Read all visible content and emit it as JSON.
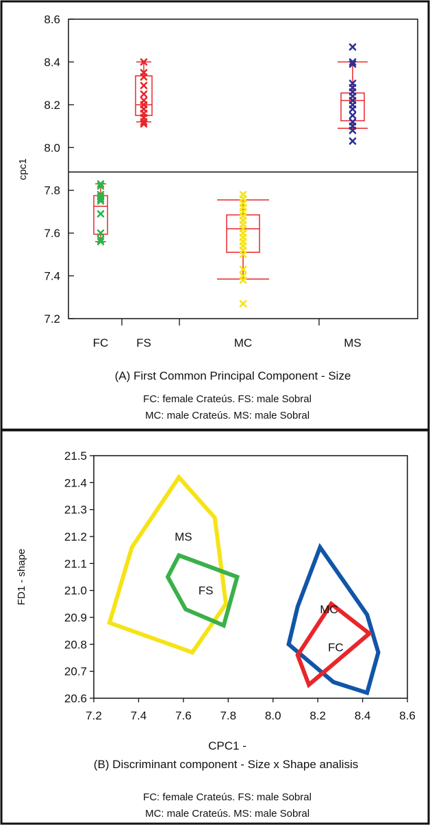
{
  "chart_data": [
    {
      "type": "box",
      "panel": "A",
      "ylabel": "cpc1",
      "ylim": [
        7.2,
        8.6
      ],
      "y_ticks": [
        "7.2",
        "7.4",
        "7.6",
        "7.8",
        "8.0",
        "8.2",
        "8.4",
        "8.6"
      ],
      "categories": [
        "FC",
        "FS",
        "MC",
        "MS"
      ],
      "grid": false,
      "series": [
        {
          "category": "FC",
          "color": "#2db34a",
          "box": {
            "q1": 7.595,
            "median": 7.725,
            "q3": 7.775,
            "whisker_low": 7.56,
            "whisker_high": 7.83
          },
          "points": [
            7.56,
            7.57,
            7.6,
            7.69,
            7.75,
            7.76,
            7.77,
            7.78,
            7.82,
            7.83
          ]
        },
        {
          "category": "FS",
          "color": "#e8262b",
          "box": {
            "q1": 8.15,
            "median": 8.2,
            "q3": 8.335,
            "whisker_low": 8.12,
            "whisker_high": 8.4
          },
          "points": [
            8.11,
            8.12,
            8.14,
            8.16,
            8.18,
            8.2,
            8.22,
            8.25,
            8.29,
            8.33,
            8.35,
            8.4
          ]
        },
        {
          "category": "MC",
          "color": "#f6e317",
          "box": {
            "q1": 7.51,
            "median": 7.62,
            "q3": 7.685,
            "whisker_low": 7.385,
            "whisker_high": 7.755
          },
          "points": [
            7.27,
            7.38,
            7.4,
            7.43,
            7.5,
            7.52,
            7.54,
            7.56,
            7.58,
            7.6,
            7.62,
            7.64,
            7.66,
            7.68,
            7.7,
            7.72,
            7.74,
            7.76,
            7.78
          ]
        },
        {
          "category": "MS",
          "color": "#2e3192",
          "box": {
            "q1": 8.125,
            "median": 8.22,
            "q3": 8.255,
            "whisker_low": 8.09,
            "whisker_high": 8.4
          },
          "points": [
            8.03,
            8.08,
            8.1,
            8.12,
            8.15,
            8.18,
            8.2,
            8.22,
            8.24,
            8.26,
            8.28,
            8.3,
            8.39,
            8.4,
            8.47
          ]
        }
      ],
      "caption": "(A) First Common Principal Component - Size",
      "legend_lines": [
        "FC: female Crateús. FS: male Sobral",
        "MC: male Crateús. MS: male Sobral"
      ]
    },
    {
      "type": "polygon",
      "panel": "B",
      "xlabel": "CPC1 -",
      "ylabel": "FD1 - shape",
      "xlim": [
        7.2,
        8.6
      ],
      "ylim": [
        20.6,
        21.5
      ],
      "x_ticks": [
        "7.2",
        "7.4",
        "7.6",
        "7.8",
        "8.0",
        "8.2",
        "8.4",
        "8.6"
      ],
      "y_ticks": [
        "20.6",
        "20.7",
        "20.8",
        "20.9",
        "21.0",
        "21.1",
        "21.2",
        "21.3",
        "21.4",
        "21.5"
      ],
      "grid": false,
      "series": [
        {
          "name": "MS",
          "color": "#f6e317",
          "label_at": [
            7.6,
            21.2
          ],
          "points": [
            [
              7.58,
              21.42
            ],
            [
              7.74,
              21.27
            ],
            [
              7.79,
              20.95
            ],
            [
              7.64,
              20.77
            ],
            [
              7.27,
              20.88
            ],
            [
              7.37,
              21.16
            ]
          ]
        },
        {
          "name": "FS",
          "color": "#3bb04a",
          "label_at": [
            7.7,
            21.0
          ],
          "points": [
            [
              7.58,
              21.13
            ],
            [
              7.84,
              21.05
            ],
            [
              7.78,
              20.87
            ],
            [
              7.61,
              20.93
            ],
            [
              7.53,
              21.05
            ]
          ]
        },
        {
          "name": "MC",
          "color": "#1155a8",
          "label_at": [
            8.25,
            20.93
          ],
          "points": [
            [
              8.21,
              21.16
            ],
            [
              8.42,
              20.91
            ],
            [
              8.47,
              20.77
            ],
            [
              8.42,
              20.62
            ],
            [
              8.27,
              20.66
            ],
            [
              8.07,
              20.8
            ],
            [
              8.11,
              20.94
            ]
          ]
        },
        {
          "name": "FC",
          "color": "#e8262b",
          "label_at": [
            8.28,
            20.79
          ],
          "points": [
            [
              8.26,
              20.95
            ],
            [
              8.43,
              20.84
            ],
            [
              8.16,
              20.65
            ],
            [
              8.11,
              20.76
            ]
          ]
        }
      ],
      "caption": "(B) Discriminant component - Size x Shape analisis",
      "legend_lines": [
        "FC: female Crateús. FS: male Sobral",
        "MC: male Crateús. MS: male Sobral"
      ]
    }
  ]
}
